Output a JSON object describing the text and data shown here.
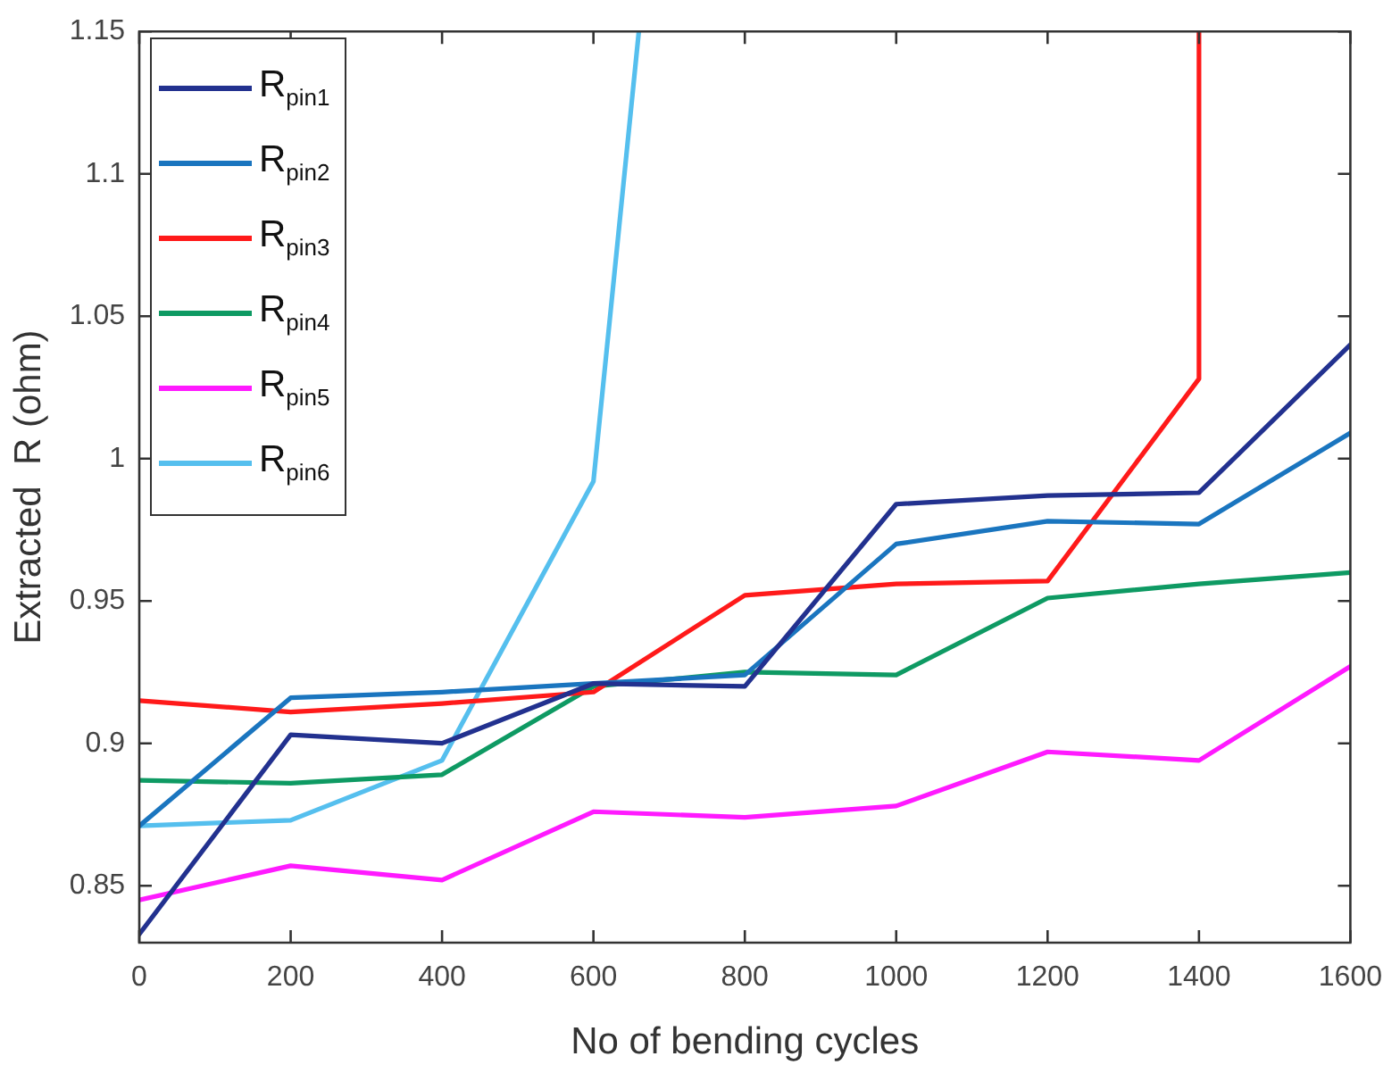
{
  "chart_data": {
    "type": "line",
    "xlabel": "No of bending cycles",
    "ylabel": "Extracted  R (ohm)",
    "x": [
      0,
      200,
      400,
      600,
      800,
      1000,
      1200,
      1400,
      1600
    ],
    "xlim": [
      0,
      1600
    ],
    "xticks": [
      0,
      200,
      400,
      600,
      800,
      1000,
      1200,
      1400,
      1600
    ],
    "ylim": [
      0.83,
      1.15
    ],
    "yticks": [
      0.85,
      0.9,
      0.95,
      1,
      1.05,
      1.1,
      1.15
    ],
    "grid": false,
    "legend": "top left",
    "marker": "none",
    "line_style": "solid",
    "series": [
      {
        "name": "R$_{pin1}$",
        "color": "#22318f",
        "values": [
          0.833,
          0.903,
          0.9,
          0.921,
          0.92,
          0.984,
          0.987,
          0.988,
          1.04
        ]
      },
      {
        "name": "R$_{pin2}$",
        "color": "#1a75bf",
        "values": [
          0.871,
          0.916,
          0.918,
          0.921,
          0.924,
          0.97,
          0.978,
          0.977,
          1.009
        ]
      },
      {
        "name": "R$_{pin3}$",
        "color": "#ff1a1a",
        "x": [
          0,
          200,
          400,
          600,
          800,
          1000,
          1200,
          1400,
          1400
        ],
        "values": [
          0.915,
          0.911,
          0.914,
          0.918,
          0.952,
          0.956,
          0.957,
          1.028,
          1.15
        ]
      },
      {
        "name": "R$_{pin4}$",
        "color": "#0e9a63",
        "values": [
          0.887,
          0.886,
          0.889,
          0.92,
          0.925,
          0.924,
          0.951,
          0.956,
          0.96
        ]
      },
      {
        "name": "R$_{pin5}$",
        "color": "#ff1aff",
        "values": [
          0.845,
          0.857,
          0.852,
          0.876,
          0.874,
          0.878,
          0.897,
          0.894,
          0.927
        ]
      },
      {
        "name": "R$_{pin6}$",
        "color": "#55bfee",
        "x": [
          0,
          200,
          400,
          600,
          660
        ],
        "values": [
          0.871,
          0.873,
          0.894,
          0.992,
          1.15
        ]
      }
    ]
  }
}
